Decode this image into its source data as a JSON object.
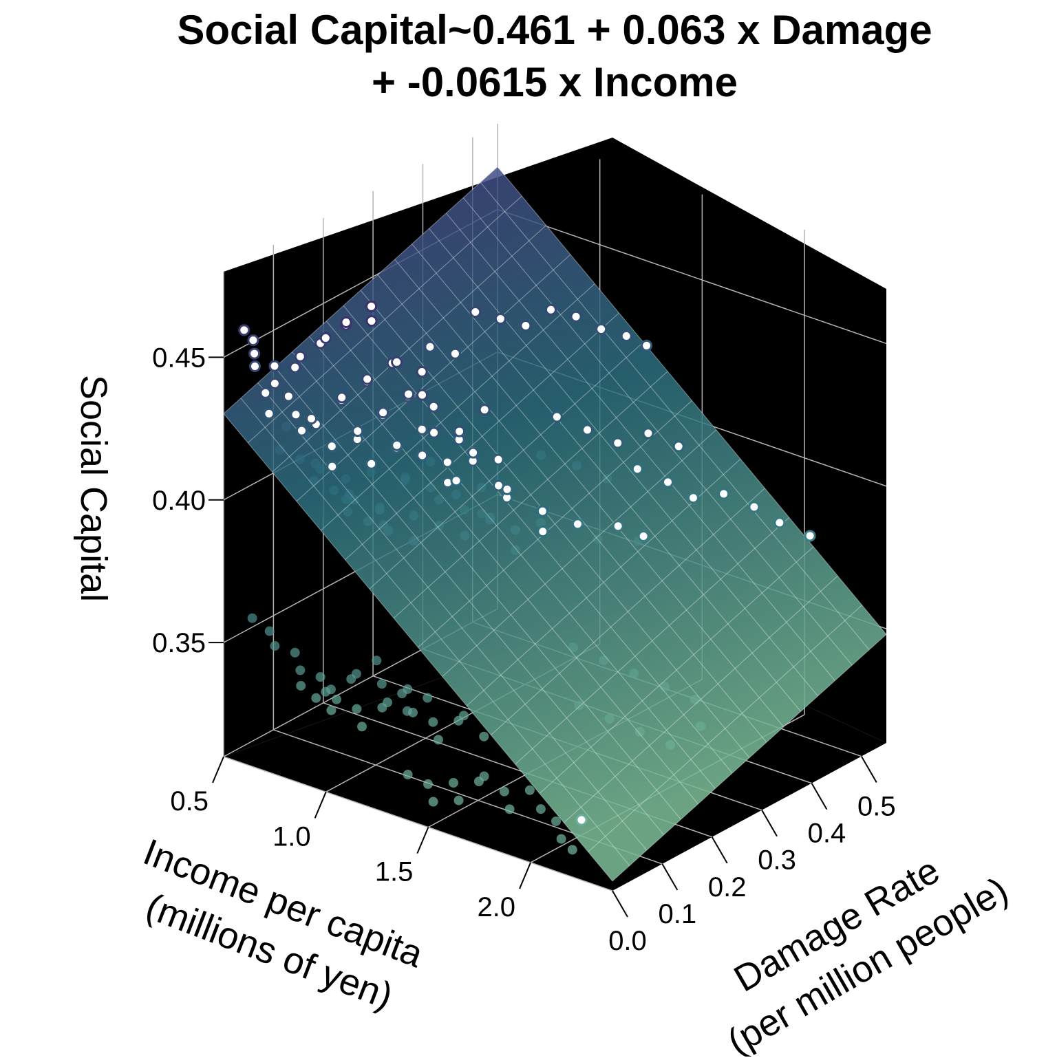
{
  "chart_data": {
    "type": "scatter",
    "title": "Social Capital~0.461 + 0.063 x Damage",
    "subtitle": "+ -0.0615 x Income",
    "zlabel": "Social Capital",
    "xlabel_line1": "Income per capita",
    "xlabel_line2": "(millions of yen)",
    "ylabel_line1": "Damage Rate",
    "ylabel_line2": "(per million people)",
    "x_ticks": [
      "0.5",
      "1.0",
      "1.5",
      "2.0"
    ],
    "y_ticks": [
      "0.0",
      "0.1",
      "0.2",
      "0.3",
      "0.4",
      "0.5"
    ],
    "z_ticks": [
      "0.35",
      "0.40",
      "0.45"
    ],
    "x_tick_values": [
      0.5,
      1.0,
      1.5,
      2.0
    ],
    "y_tick_values": [
      0.0,
      0.1,
      0.2,
      0.3,
      0.4,
      0.5
    ],
    "z_tick_values": [
      0.35,
      0.4,
      0.45
    ],
    "xlim": [
      0.5,
      2.4
    ],
    "ylim": [
      0.0,
      0.55
    ],
    "zlim": [
      0.31,
      0.48
    ],
    "model": {
      "intercept": 0.461,
      "damage_coef": 0.063,
      "income_coef": -0.0615
    },
    "colors": {
      "panel": "#000000",
      "grid": "#b4b4b4",
      "high": "#3b2f6b",
      "mid": "#2d6e7e",
      "low": "#7fc3a8"
    },
    "points": [
      [
        0.6,
        0.0,
        0.462
      ],
      [
        0.62,
        0.01,
        0.458
      ],
      [
        0.65,
        0.0,
        0.455
      ],
      [
        0.7,
        0.02,
        0.45
      ],
      [
        0.58,
        0.03,
        0.446
      ],
      [
        0.68,
        0.01,
        0.441
      ],
      [
        0.75,
        0.0,
        0.447
      ],
      [
        0.8,
        0.02,
        0.452
      ],
      [
        0.85,
        0.01,
        0.458
      ],
      [
        0.9,
        0.03,
        0.462
      ],
      [
        0.95,
        0.02,
        0.466
      ],
      [
        1.0,
        0.04,
        0.47
      ],
      [
        1.05,
        0.02,
        0.474
      ],
      [
        1.1,
        0.05,
        0.478
      ],
      [
        1.15,
        0.03,
        0.476
      ],
      [
        0.72,
        0.04,
        0.438
      ],
      [
        0.78,
        0.03,
        0.434
      ],
      [
        0.83,
        0.05,
        0.43
      ],
      [
        0.88,
        0.02,
        0.436
      ],
      [
        0.93,
        0.06,
        0.44
      ],
      [
        0.98,
        0.04,
        0.444
      ],
      [
        1.03,
        0.07,
        0.448
      ],
      [
        1.08,
        0.05,
        0.452
      ],
      [
        1.13,
        0.08,
        0.456
      ],
      [
        1.2,
        0.06,
        0.46
      ],
      [
        1.25,
        0.09,
        0.455
      ],
      [
        1.3,
        0.07,
        0.45
      ],
      [
        0.6,
        0.05,
        0.428
      ],
      [
        0.66,
        0.06,
        0.424
      ],
      [
        0.71,
        0.08,
        0.42
      ],
      [
        0.76,
        0.05,
        0.426
      ],
      [
        0.81,
        0.09,
        0.418
      ],
      [
        0.86,
        0.07,
        0.414
      ],
      [
        0.91,
        0.1,
        0.422
      ],
      [
        0.96,
        0.08,
        0.428
      ],
      [
        1.01,
        0.11,
        0.432
      ],
      [
        1.06,
        0.09,
        0.436
      ],
      [
        1.11,
        0.12,
        0.44
      ],
      [
        1.16,
        0.1,
        0.444
      ],
      [
        1.21,
        0.13,
        0.438
      ],
      [
        1.26,
        0.11,
        0.432
      ],
      [
        1.31,
        0.14,
        0.428
      ],
      [
        1.36,
        0.12,
        0.434
      ],
      [
        1.41,
        0.15,
        0.44
      ],
      [
        0.58,
        0.08,
        0.412
      ],
      [
        0.63,
        0.1,
        0.408
      ],
      [
        0.68,
        0.12,
        0.404
      ],
      [
        0.73,
        0.09,
        0.41
      ],
      [
        0.78,
        0.13,
        0.402
      ],
      [
        0.83,
        0.11,
        0.398
      ],
      [
        0.88,
        0.14,
        0.406
      ],
      [
        0.93,
        0.12,
        0.412
      ],
      [
        0.98,
        0.15,
        0.416
      ],
      [
        1.03,
        0.13,
        0.42
      ],
      [
        1.08,
        0.16,
        0.424
      ],
      [
        1.13,
        0.14,
        0.418
      ],
      [
        1.18,
        0.17,
        0.414
      ],
      [
        1.23,
        0.15,
        0.41
      ],
      [
        1.28,
        0.18,
        0.416
      ],
      [
        1.33,
        0.16,
        0.422
      ],
      [
        1.38,
        0.19,
        0.418
      ],
      [
        1.43,
        0.17,
        0.412
      ],
      [
        0.6,
        0.14,
        0.396
      ],
      [
        0.65,
        0.16,
        0.392
      ],
      [
        0.7,
        0.18,
        0.388
      ],
      [
        0.75,
        0.15,
        0.394
      ],
      [
        0.8,
        0.19,
        0.386
      ],
      [
        0.85,
        0.17,
        0.39
      ],
      [
        0.9,
        0.2,
        0.398
      ],
      [
        0.95,
        0.18,
        0.402
      ],
      [
        1.0,
        0.21,
        0.406
      ],
      [
        1.05,
        0.19,
        0.4
      ],
      [
        1.1,
        0.22,
        0.396
      ],
      [
        1.15,
        0.2,
        0.404
      ],
      [
        1.2,
        0.23,
        0.4
      ],
      [
        1.25,
        0.21,
        0.394
      ],
      [
        1.3,
        0.24,
        0.398
      ],
      [
        1.35,
        0.22,
        0.404
      ],
      [
        1.45,
        0.25,
        0.396
      ],
      [
        1.5,
        0.23,
        0.392
      ],
      [
        0.62,
        0.2,
        0.38
      ],
      [
        0.67,
        0.22,
        0.376
      ],
      [
        0.72,
        0.24,
        0.372
      ],
      [
        0.77,
        0.21,
        0.378
      ],
      [
        0.82,
        0.25,
        0.37
      ],
      [
        0.87,
        0.23,
        0.382
      ],
      [
        0.92,
        0.26,
        0.386
      ],
      [
        0.97,
        0.24,
        0.38
      ],
      [
        1.02,
        0.27,
        0.384
      ],
      [
        1.07,
        0.25,
        0.378
      ],
      [
        1.12,
        0.28,
        0.382
      ],
      [
        1.17,
        0.26,
        0.386
      ],
      [
        1.22,
        0.29,
        0.38
      ],
      [
        1.27,
        0.27,
        0.376
      ],
      [
        1.32,
        0.3,
        0.384
      ],
      [
        1.5,
        0.3,
        0.388
      ],
      [
        1.55,
        0.32,
        0.382
      ],
      [
        1.6,
        0.34,
        0.386
      ],
      [
        1.65,
        0.36,
        0.38
      ],
      [
        1.7,
        0.35,
        0.384
      ],
      [
        0.64,
        0.0,
        0.362
      ],
      [
        0.7,
        0.01,
        0.358
      ],
      [
        0.75,
        0.0,
        0.355
      ],
      [
        0.8,
        0.02,
        0.352
      ],
      [
        0.85,
        0.01,
        0.348
      ],
      [
        0.9,
        0.03,
        0.345
      ],
      [
        0.95,
        0.02,
        0.342
      ],
      [
        1.0,
        0.01,
        0.345
      ],
      [
        1.05,
        0.03,
        0.348
      ],
      [
        1.1,
        0.02,
        0.352
      ],
      [
        1.15,
        0.04,
        0.356
      ],
      [
        1.2,
        0.03,
        0.35
      ],
      [
        1.25,
        0.05,
        0.346
      ],
      [
        1.3,
        0.04,
        0.342
      ],
      [
        1.35,
        0.06,
        0.346
      ],
      [
        0.78,
        0.04,
        0.338
      ],
      [
        0.83,
        0.05,
        0.334
      ],
      [
        0.88,
        0.06,
        0.33
      ],
      [
        0.93,
        0.05,
        0.336
      ],
      [
        0.98,
        0.07,
        0.332
      ],
      [
        1.03,
        0.06,
        0.328
      ],
      [
        1.08,
        0.08,
        0.334
      ],
      [
        1.13,
        0.07,
        0.338
      ],
      [
        1.18,
        0.09,
        0.342
      ],
      [
        1.23,
        0.08,
        0.336
      ],
      [
        1.28,
        0.1,
        0.332
      ],
      [
        1.33,
        0.09,
        0.328
      ],
      [
        1.38,
        0.11,
        0.334
      ],
      [
        1.43,
        0.1,
        0.338
      ],
      [
        1.48,
        0.12,
        0.33
      ],
      [
        1.4,
        0.0,
        0.326
      ],
      [
        1.45,
        0.02,
        0.322
      ],
      [
        1.5,
        0.01,
        0.318
      ],
      [
        1.55,
        0.03,
        0.324
      ],
      [
        1.6,
        0.02,
        0.32
      ],
      [
        1.65,
        0.04,
        0.326
      ],
      [
        1.7,
        0.03,
        0.33
      ],
      [
        1.75,
        0.05,
        0.324
      ],
      [
        1.8,
        0.04,
        0.32
      ],
      [
        1.85,
        0.06,
        0.326
      ],
      [
        2.05,
        0.0,
        0.33
      ],
      [
        2.1,
        0.01,
        0.326
      ],
      [
        2.15,
        0.0,
        0.322
      ],
      [
        2.2,
        0.02,
        0.328
      ],
      [
        2.18,
        0.01,
        0.318
      ],
      [
        1.6,
        0.25,
        0.352
      ],
      [
        1.7,
        0.27,
        0.348
      ],
      [
        1.8,
        0.29,
        0.344
      ],
      [
        1.9,
        0.31,
        0.34
      ],
      [
        2.0,
        0.33,
        0.336
      ],
      [
        2.1,
        0.3,
        0.332
      ],
      [
        1.75,
        0.2,
        0.34
      ],
      [
        1.85,
        0.22,
        0.336
      ],
      [
        1.95,
        0.24,
        0.332
      ],
      [
        2.05,
        0.26,
        0.328
      ],
      [
        1.2,
        0.35,
        0.4
      ],
      [
        1.3,
        0.38,
        0.396
      ],
      [
        1.4,
        0.4,
        0.392
      ],
      [
        1.5,
        0.42,
        0.396
      ],
      [
        1.6,
        0.44,
        0.392
      ],
      [
        1.7,
        0.45,
        0.388
      ],
      [
        1.8,
        0.47,
        0.39
      ],
      [
        1.9,
        0.49,
        0.386
      ],
      [
        2.0,
        0.5,
        0.382
      ],
      [
        2.1,
        0.52,
        0.378
      ],
      [
        1.35,
        0.32,
        0.42
      ],
      [
        1.45,
        0.34,
        0.416
      ],
      [
        1.55,
        0.36,
        0.412
      ],
      [
        1.65,
        0.38,
        0.416
      ],
      [
        1.75,
        0.4,
        0.412
      ],
      [
        1.0,
        0.3,
        0.45
      ],
      [
        1.05,
        0.33,
        0.446
      ],
      [
        1.1,
        0.36,
        0.442
      ],
      [
        1.15,
        0.39,
        0.446
      ],
      [
        1.2,
        0.42,
        0.442
      ],
      [
        0.9,
        0.25,
        0.44
      ],
      [
        0.95,
        0.28,
        0.436
      ],
      [
        1.25,
        0.45,
        0.436
      ],
      [
        1.3,
        0.48,
        0.432
      ],
      [
        1.35,
        0.5,
        0.428
      ]
    ]
  }
}
